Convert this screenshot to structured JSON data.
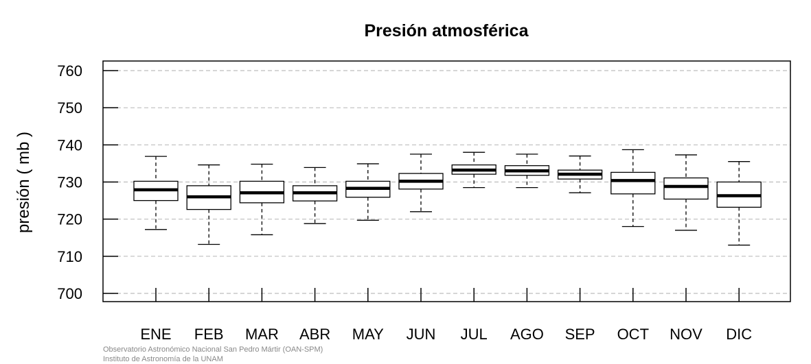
{
  "chart_data": {
    "type": "box",
    "title": "Presión atmosférica",
    "xlabel": "",
    "ylabel": "presión ( mb )",
    "ylim": [
      700,
      760
    ],
    "yticks": [
      700,
      710,
      720,
      730,
      740,
      750,
      760
    ],
    "grid": true,
    "categories": [
      "ENE",
      "FEB",
      "MAR",
      "ABR",
      "MAY",
      "JUN",
      "JUL",
      "AGO",
      "SEP",
      "OCT",
      "NOV",
      "DIC"
    ],
    "boxes": [
      {
        "label": "ENE",
        "min": 717.2,
        "q1": 725.0,
        "median": 727.9,
        "q3": 730.2,
        "max": 736.9
      },
      {
        "label": "FEB",
        "min": 713.2,
        "q1": 722.6,
        "median": 726.0,
        "q3": 729.0,
        "max": 734.6
      },
      {
        "label": "MAR",
        "min": 715.8,
        "q1": 724.4,
        "median": 727.1,
        "q3": 730.2,
        "max": 734.8
      },
      {
        "label": "ABR",
        "min": 718.8,
        "q1": 724.9,
        "median": 727.1,
        "q3": 729.0,
        "max": 733.9
      },
      {
        "label": "MAY",
        "min": 719.7,
        "q1": 725.9,
        "median": 728.3,
        "q3": 730.2,
        "max": 734.9
      },
      {
        "label": "JUN",
        "min": 722.0,
        "q1": 728.1,
        "median": 730.2,
        "q3": 732.3,
        "max": 737.5
      },
      {
        "label": "JUL",
        "min": 728.5,
        "q1": 732.1,
        "median": 733.2,
        "q3": 734.6,
        "max": 738.0
      },
      {
        "label": "AGO",
        "min": 728.5,
        "q1": 731.8,
        "median": 733.0,
        "q3": 734.4,
        "max": 737.5
      },
      {
        "label": "SEP",
        "min": 727.1,
        "q1": 730.8,
        "median": 732.1,
        "q3": 733.2,
        "max": 737.0
      },
      {
        "label": "OCT",
        "min": 718.0,
        "q1": 726.8,
        "median": 730.4,
        "q3": 732.6,
        "max": 738.7
      },
      {
        "label": "NOV",
        "min": 717.0,
        "q1": 725.4,
        "median": 728.8,
        "q3": 731.1,
        "max": 737.3
      },
      {
        "label": "DIC",
        "min": 713.0,
        "q1": 723.2,
        "median": 726.3,
        "q3": 730.0,
        "max": 735.5
      }
    ]
  },
  "footer": {
    "line1": "Observatorio Astronómico Nacional San Pedro Mártir (OAN-SPM)",
    "line2": "Instituto de Astronomía de la UNAM"
  }
}
